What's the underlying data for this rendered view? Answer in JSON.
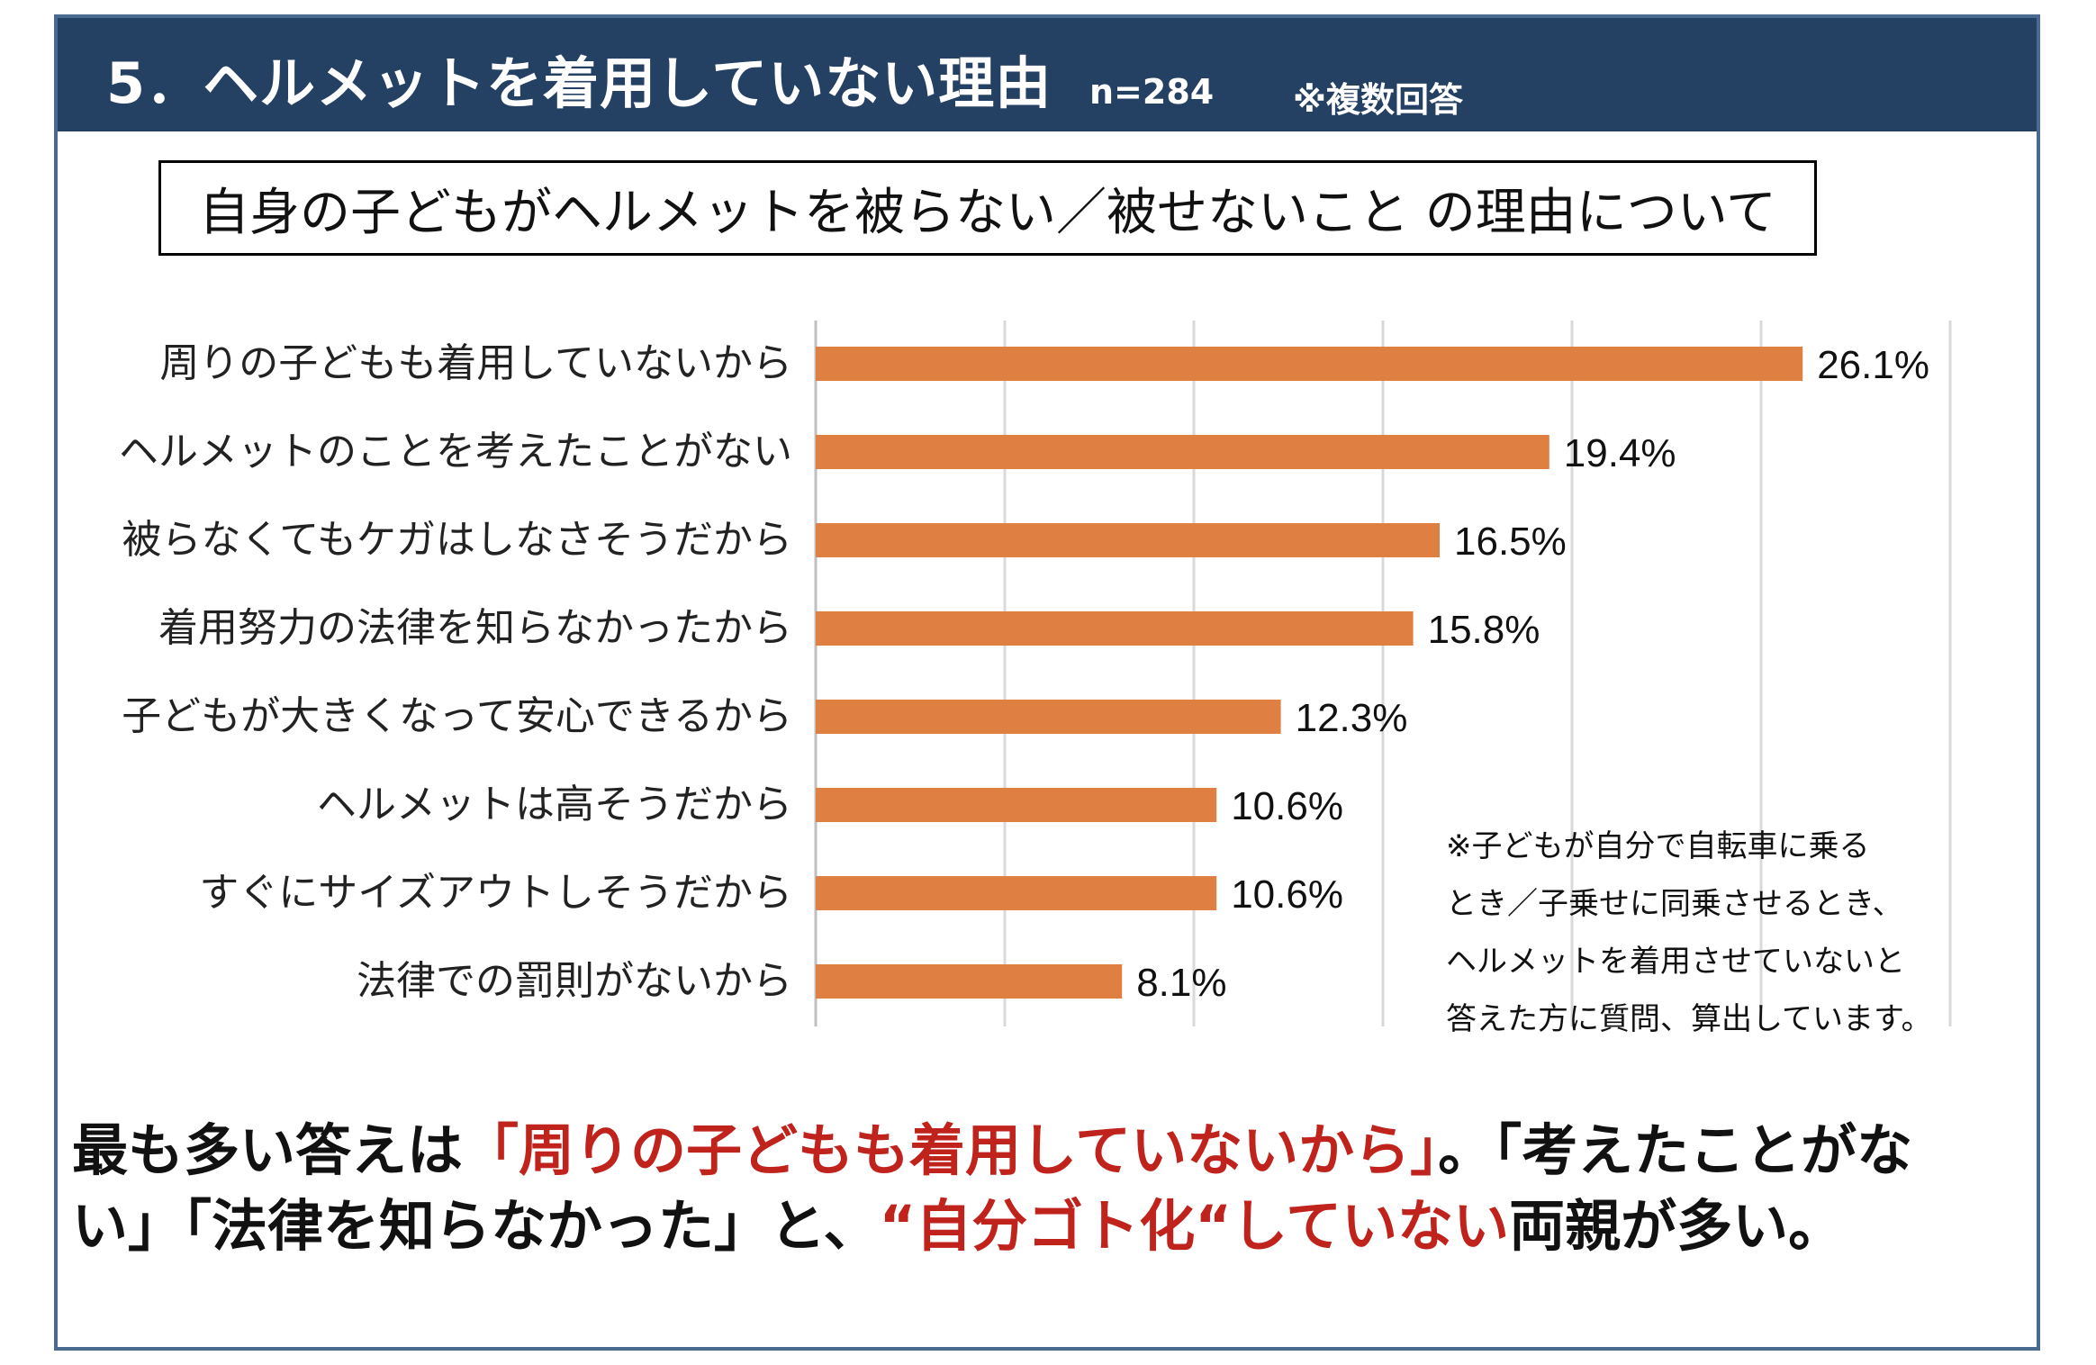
{
  "header": {
    "title": "5．ヘルメットを着用していない理由",
    "sample_size": "n=284",
    "note": "※複数回答"
  },
  "subtitle": "自身の子どもがヘルメットを被らない／被せないこと の理由について",
  "chart_data": {
    "type": "bar",
    "orientation": "horizontal",
    "title": "自身の子どもがヘルメットを被らない／被せないこと の理由について",
    "categories": [
      "周りの子どもも着用していないから",
      "ヘルメットのことを考えたことがない",
      "被らなくてもケガはしなさそうだから",
      "着用努力の法律を知らなかったから",
      "子どもが大きくなって安心できるから",
      "ヘルメットは高そうだから",
      "すぐにサイズアウトしそうだから",
      "法律での罰則がないから"
    ],
    "values": [
      26.1,
      19.4,
      16.5,
      15.8,
      12.3,
      10.6,
      10.6,
      8.1
    ],
    "labels": [
      "26.1%",
      "19.4%",
      "16.5%",
      "15.8%",
      "12.3%",
      "10.6%",
      "10.6%",
      "8.1%"
    ],
    "unit": "%",
    "xlim": [
      0,
      30
    ],
    "grid": true,
    "bar_color": "#e07f42",
    "grid_color": "#d9d9d9"
  },
  "chart_note": [
    "※子どもが自分で自転車に乗る",
    "とき／子乗せに同乗させるとき、",
    "ヘルメットを着用させていないと",
    "答えた方に質問、算出しています。"
  ],
  "conclusion": {
    "part1": "最も多い答えは",
    "highlight1": "「周りの子どもも着用していないから」",
    "part2": "。「考えたことがない」「法律を知らなかった」と、",
    "highlight2": "“自分ゴト化“していない",
    "part3": "両親が多い。"
  },
  "colors": {
    "header_bg": "#244063",
    "frame_border": "#4a6a8f",
    "highlight_red": "#c0221c"
  }
}
